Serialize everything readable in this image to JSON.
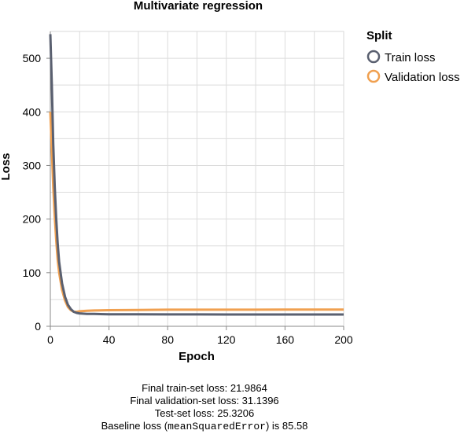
{
  "chart_data": {
    "type": "line",
    "title": "Multivariate regression",
    "xlabel": "Epoch",
    "ylabel": "Loss",
    "xlim": [
      0,
      200
    ],
    "ylim": [
      0,
      550
    ],
    "x_ticks": [
      0,
      40,
      80,
      120,
      160,
      200
    ],
    "y_ticks": [
      0,
      100,
      200,
      300,
      400,
      500
    ],
    "grid": true,
    "legend": {
      "title": "Split",
      "position": "right"
    },
    "series": [
      {
        "name": "Train loss",
        "color": "#5a6070",
        "x": [
          0,
          1,
          2,
          3,
          4,
          5,
          6,
          8,
          10,
          12,
          14,
          16,
          18,
          20,
          25,
          30,
          40,
          60,
          80,
          100,
          120,
          140,
          160,
          180,
          200
        ],
        "y": [
          545,
          450,
          340,
          260,
          200,
          155,
          120,
          80,
          55,
          40,
          32,
          27,
          25,
          24,
          23,
          23,
          22.5,
          22.3,
          22.2,
          22.1,
          22.0,
          22.0,
          22.0,
          22.0,
          21.99
        ]
      },
      {
        "name": "Validation loss",
        "color": "#f0a050",
        "x": [
          0,
          1,
          2,
          3,
          4,
          5,
          6,
          8,
          10,
          12,
          14,
          16,
          18,
          20,
          25,
          30,
          40,
          60,
          80,
          100,
          120,
          140,
          160,
          180,
          200
        ],
        "y": [
          400,
          330,
          260,
          205,
          160,
          125,
          100,
          68,
          48,
          36,
          30,
          27,
          27,
          28,
          29,
          29.5,
          30,
          30.5,
          31,
          31,
          31,
          31,
          31.1,
          31.1,
          31.14
        ]
      }
    ]
  },
  "summary": {
    "train_line": "Final train-set loss: 21.9864",
    "validation_line": "Final validation-set loss: 31.1396",
    "test_line": "Test-set loss: 25.3206",
    "baseline_prefix": "Baseline loss (",
    "baseline_code": "meanSquaredError",
    "baseline_suffix": ") is 85.58"
  }
}
